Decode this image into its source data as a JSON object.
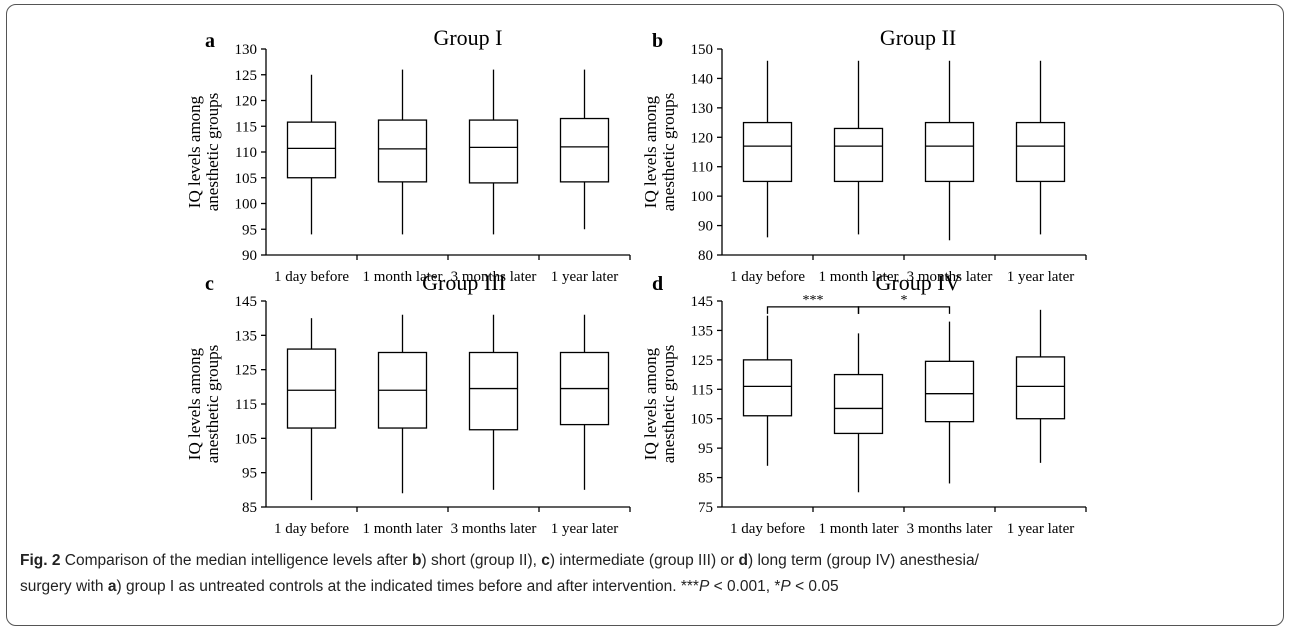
{
  "colors": {
    "stroke": "#000000",
    "frame": "#555555",
    "background": "#ffffff",
    "text": "#222222"
  },
  "caption": {
    "fig_label": "Fig. 2",
    "t1": " Comparison of the median intelligence levels after ",
    "b_label": "b",
    "t2": ") short (group II), ",
    "c_label": "c",
    "t3": ") intermediate (group III) or ",
    "d_label": "d",
    "t4": ") long term (group IV) anesthesia/",
    "t5": "surgery with ",
    "a_label": "a",
    "t6": ") group I as untreated controls at the indicated times before and after intervention. ***",
    "p1": "P",
    "t7": " < 0.001, *",
    "p2": "P",
    "t8": " < 0.05"
  },
  "chart_data": [
    {
      "panel": "a",
      "type": "boxplot",
      "title": "Group I",
      "ylabel": [
        "IQ levels among",
        "anesthetic groups"
      ],
      "categories": [
        "1 day before",
        "1 month later",
        "3 months later",
        "1 year later"
      ],
      "ylim": [
        90,
        130
      ],
      "yticks": [
        90,
        95,
        100,
        105,
        110,
        115,
        120,
        125,
        130
      ],
      "boxes": [
        {
          "min": 94,
          "q1": 105,
          "median": 110.7,
          "q3": 115.8,
          "max": 125
        },
        {
          "min": 94,
          "q1": 104.2,
          "median": 110.6,
          "q3": 116.2,
          "max": 126
        },
        {
          "min": 94,
          "q1": 104,
          "median": 110.9,
          "q3": 116.2,
          "max": 126
        },
        {
          "min": 95,
          "q1": 104.2,
          "median": 111,
          "q3": 116.5,
          "max": 126
        }
      ],
      "annotations": []
    },
    {
      "panel": "b",
      "type": "boxplot",
      "title": "Group II",
      "ylabel": [
        "IQ levels among",
        "anesthetic groups"
      ],
      "categories": [
        "1 day before",
        "1 month later",
        "3 months later",
        "1 year later"
      ],
      "ylim": [
        80,
        150
      ],
      "yticks": [
        80,
        90,
        100,
        110,
        120,
        130,
        140,
        150
      ],
      "boxes": [
        {
          "min": 86,
          "q1": 105,
          "median": 117,
          "q3": 125,
          "max": 146
        },
        {
          "min": 87,
          "q1": 105,
          "median": 117,
          "q3": 123,
          "max": 146
        },
        {
          "min": 85,
          "q1": 105,
          "median": 117,
          "q3": 125,
          "max": 146
        },
        {
          "min": 87,
          "q1": 105,
          "median": 117,
          "q3": 125,
          "max": 146
        }
      ],
      "annotations": []
    },
    {
      "panel": "c",
      "type": "boxplot",
      "title": "Group III",
      "ylabel": [
        "IQ levels among",
        "anesthetic groups"
      ],
      "categories": [
        "1 day before",
        "1 month later",
        "3 months later",
        "1 year later"
      ],
      "ylim": [
        85,
        145
      ],
      "yticks": [
        85,
        95,
        105,
        115,
        125,
        135,
        145
      ],
      "boxes": [
        {
          "min": 87,
          "q1": 108,
          "median": 119,
          "q3": 131,
          "max": 140
        },
        {
          "min": 89,
          "q1": 108,
          "median": 119,
          "q3": 130,
          "max": 141
        },
        {
          "min": 90,
          "q1": 107.5,
          "median": 119.5,
          "q3": 130,
          "max": 141
        },
        {
          "min": 90,
          "q1": 109,
          "median": 119.5,
          "q3": 130,
          "max": 141
        }
      ],
      "annotations": []
    },
    {
      "panel": "d",
      "type": "boxplot",
      "title": "Group IV",
      "ylabel": [
        "IQ levels among",
        "anesthetic groups"
      ],
      "categories": [
        "1 day before",
        "1 month later",
        "3 months later",
        "1 year later"
      ],
      "ylim": [
        75,
        145
      ],
      "yticks": [
        75,
        85,
        95,
        105,
        115,
        125,
        135,
        145
      ],
      "boxes": [
        {
          "min": 89,
          "q1": 106,
          "median": 116,
          "q3": 125,
          "max": 140
        },
        {
          "min": 80,
          "q1": 100,
          "median": 108.5,
          "q3": 120,
          "max": 134
        },
        {
          "min": 83,
          "q1": 104,
          "median": 113.5,
          "q3": 124.5,
          "max": 138
        },
        {
          "min": 90,
          "q1": 105,
          "median": 116,
          "q3": 126,
          "max": 142
        }
      ],
      "annotations": [
        {
          "from": 0,
          "to": 1,
          "y": 143,
          "label": "***"
        },
        {
          "from": 1,
          "to": 2,
          "y": 143,
          "label": "*"
        }
      ]
    }
  ]
}
